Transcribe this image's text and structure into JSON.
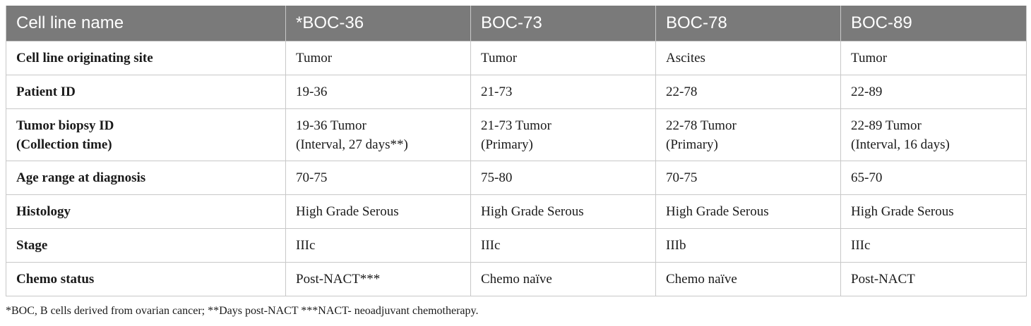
{
  "table": {
    "headers": [
      "Cell line name",
      "*BOC-36",
      "BOC-73",
      "BOC-78",
      "BOC-89"
    ],
    "rows": [
      {
        "label": [
          "Cell line originating site"
        ],
        "cells": [
          [
            "Tumor"
          ],
          [
            "Tumor"
          ],
          [
            "Ascites"
          ],
          [
            "Tumor"
          ]
        ]
      },
      {
        "label": [
          "Patient ID"
        ],
        "cells": [
          [
            "19-36"
          ],
          [
            "21-73"
          ],
          [
            "22-78"
          ],
          [
            "22-89"
          ]
        ]
      },
      {
        "label": [
          "Tumor biopsy ID",
          "(Collection time)"
        ],
        "cells": [
          [
            "19-36 Tumor",
            "(Interval, 27 days**)"
          ],
          [
            "21-73 Tumor",
            "(Primary)"
          ],
          [
            "22-78 Tumor",
            "(Primary)"
          ],
          [
            "22-89 Tumor",
            "(Interval, 16 days)"
          ]
        ]
      },
      {
        "label": [
          "Age range at diagnosis"
        ],
        "cells": [
          [
            "70-75"
          ],
          [
            "75-80"
          ],
          [
            "70-75"
          ],
          [
            "65-70"
          ]
        ]
      },
      {
        "label": [
          "Histology"
        ],
        "cells": [
          [
            "High Grade Serous"
          ],
          [
            "High Grade Serous"
          ],
          [
            "High Grade Serous"
          ],
          [
            "High Grade Serous"
          ]
        ]
      },
      {
        "label": [
          "Stage"
        ],
        "cells": [
          [
            "IIIc"
          ],
          [
            "IIIc"
          ],
          [
            "IIIb"
          ],
          [
            "IIIc"
          ]
        ]
      },
      {
        "label": [
          "Chemo status"
        ],
        "cells": [
          [
            "Post-NACT***"
          ],
          [
            "Chemo naïve"
          ],
          [
            "Chemo naïve"
          ],
          [
            "Post-NACT"
          ]
        ]
      }
    ]
  },
  "footnote": "*BOC, B cells derived from ovarian cancer; **Days post-NACT ***NACT- neoadjuvant chemotherapy.",
  "colors": {
    "header_bg": "#7a7a7a",
    "header_text": "#ffffff",
    "grid": "#c8c8c8"
  }
}
